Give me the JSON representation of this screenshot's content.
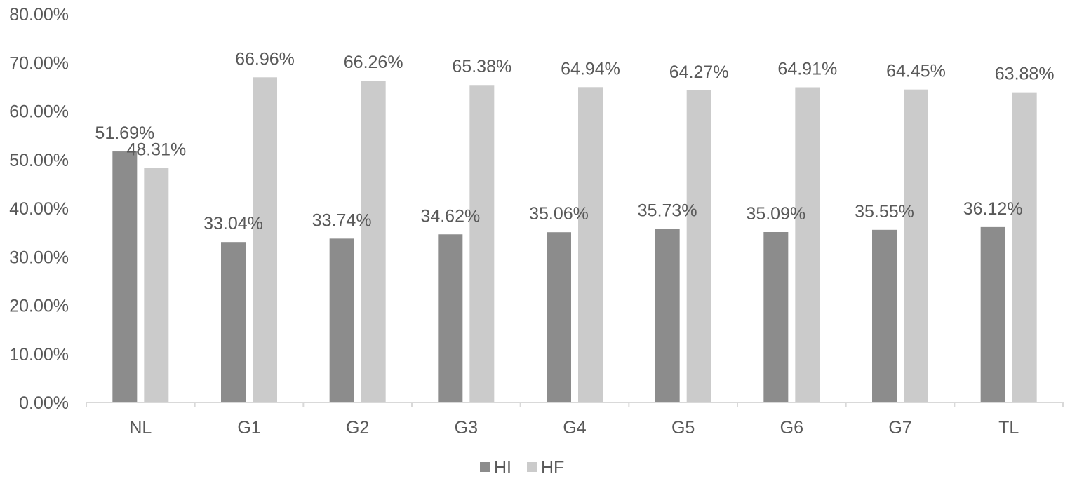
{
  "chart_data": {
    "type": "bar",
    "categories": [
      "NL",
      "G1",
      "G2",
      "G3",
      "G4",
      "G5",
      "G6",
      "G7",
      "TL"
    ],
    "series": [
      {
        "name": "HI",
        "color": "#8c8c8c",
        "values": [
          51.69,
          33.04,
          33.74,
          34.62,
          35.06,
          35.73,
          35.09,
          35.55,
          36.12
        ],
        "labels": [
          "51.69%",
          "33.04%",
          "33.74%",
          "34.62%",
          "35.06%",
          "35.73%",
          "35.09%",
          "35.55%",
          "36.12%"
        ]
      },
      {
        "name": "HF",
        "color": "#cbcbcb",
        "values": [
          48.31,
          66.96,
          66.26,
          65.38,
          64.94,
          64.27,
          64.91,
          64.45,
          63.88
        ],
        "labels": [
          "48.31%",
          "66.96%",
          "66.26%",
          "65.38%",
          "64.94%",
          "64.27%",
          "64.91%",
          "64.45%",
          "63.88%"
        ]
      }
    ],
    "ylim": [
      0,
      80
    ],
    "yticks": [
      0,
      10,
      20,
      30,
      40,
      50,
      60,
      70,
      80
    ],
    "ytick_labels": [
      "0.00%",
      "10.00%",
      "20.00%",
      "30.00%",
      "40.00%",
      "50.00%",
      "60.00%",
      "70.00%",
      "80.00%"
    ],
    "title": "",
    "xlabel": "",
    "ylabel": "",
    "grid": false,
    "legend_position": "bottom-center",
    "axis_color": "#d9d9d9",
    "text_color": "#595959"
  }
}
